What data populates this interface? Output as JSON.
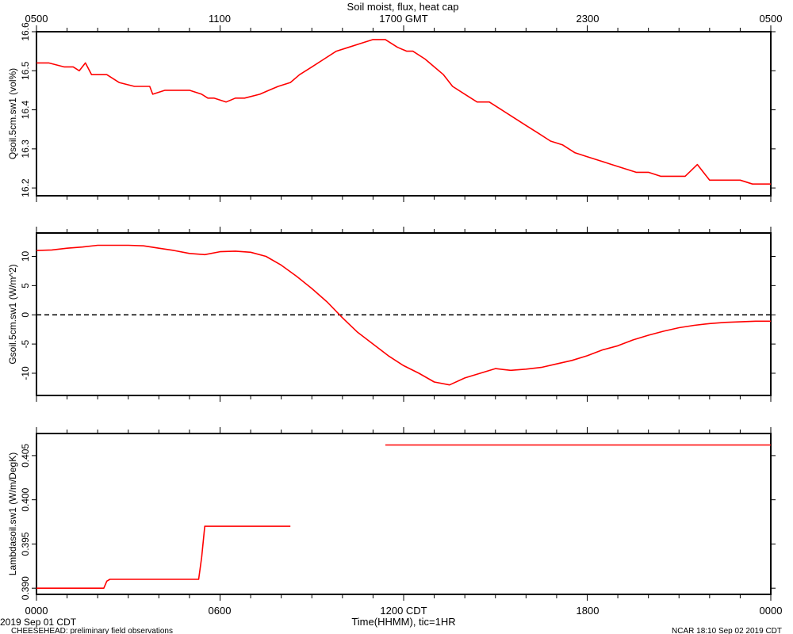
{
  "title": "Soil moist, flux, heat cap",
  "top_axis_ticks": [
    "0500",
    "1100",
    "1700 GMT",
    "2300",
    "0500"
  ],
  "bottom_axis_ticks": [
    "0000",
    "0600",
    "1200 CDT",
    "1800",
    "0000"
  ],
  "xlabel": "Time(HHMM), tic=1HR",
  "footer": {
    "date_left": "2019 Sep 01 CDT",
    "source_left": "CHEESEHEAD: preliminary field observations",
    "right": "NCAR 18:10 Sep 02 2019 CDT"
  },
  "colors": {
    "series": "#ff0000",
    "axes": "#000000",
    "zero_line": "#000000"
  },
  "chart_data": [
    {
      "type": "line",
      "ylabel": "Qsoil.5cm.sw1 (vol%)",
      "xlim": [
        0,
        24
      ],
      "ylim": [
        16.18,
        16.6
      ],
      "yticks": [
        16.2,
        16.3,
        16.4,
        16.5,
        16.6
      ],
      "ytick_labels": [
        "16.2",
        "16.3",
        "16.4",
        "16.5",
        "16.6"
      ],
      "series": [
        {
          "x": [
            0,
            0.4,
            0.9,
            1.2,
            1.4,
            1.6,
            1.8,
            2.3,
            2.7,
            3.2,
            3.7,
            3.8,
            4.2,
            4.6,
            5.0,
            5.4,
            5.6,
            5.8,
            6.2,
            6.5,
            6.8,
            7.3,
            7.6,
            7.9,
            8.3,
            8.6,
            9.0,
            9.4,
            9.8,
            10.2,
            10.6,
            11.0,
            11.4,
            11.8,
            12.1,
            12.3,
            12.7,
            13.0,
            13.3,
            13.6,
            14.0,
            14.4,
            14.8,
            15.2,
            15.6,
            16.0,
            16.4,
            16.8,
            17.2,
            17.6,
            18.0,
            18.4,
            18.8,
            19.2,
            19.6,
            20.0,
            20.4,
            20.8,
            21.2,
            21.6,
            22.0,
            22.3,
            22.6,
            23.0,
            23.4,
            23.7,
            24.0
          ],
          "y": [
            16.52,
            16.52,
            16.51,
            16.51,
            16.5,
            16.52,
            16.49,
            16.49,
            16.47,
            16.46,
            16.46,
            16.44,
            16.45,
            16.45,
            16.45,
            16.44,
            16.43,
            16.43,
            16.42,
            16.43,
            16.43,
            16.44,
            16.45,
            16.46,
            16.47,
            16.49,
            16.51,
            16.53,
            16.55,
            16.56,
            16.57,
            16.58,
            16.58,
            16.56,
            16.55,
            16.55,
            16.53,
            16.51,
            16.49,
            16.46,
            16.44,
            16.42,
            16.42,
            16.4,
            16.38,
            16.36,
            16.34,
            16.32,
            16.31,
            16.29,
            16.28,
            16.27,
            16.26,
            16.25,
            16.24,
            16.24,
            16.23,
            16.23,
            16.23,
            16.26,
            16.22,
            16.22,
            16.22,
            16.22,
            16.21,
            16.21,
            16.21
          ]
        }
      ]
    },
    {
      "type": "line",
      "ylabel": "Gsoil.5cm.sw1 (W/m^2)",
      "xlim": [
        0,
        24
      ],
      "ylim": [
        -13.8,
        14
      ],
      "yticks": [
        -10,
        -5,
        0,
        5,
        10
      ],
      "ytick_labels": [
        "-10",
        "-5",
        "0",
        "5",
        "10"
      ],
      "zero_line": true,
      "series": [
        {
          "x": [
            0,
            0.5,
            1.0,
            1.5,
            2.0,
            2.5,
            3.0,
            3.5,
            4.0,
            4.5,
            5.0,
            5.5,
            6.0,
            6.5,
            7.0,
            7.5,
            8.0,
            8.5,
            9.0,
            9.5,
            10.0,
            10.5,
            11.0,
            11.5,
            12.0,
            12.5,
            13.0,
            13.5,
            14.0,
            14.5,
            15.0,
            15.5,
            16.0,
            16.5,
            17.0,
            17.5,
            18.0,
            18.5,
            19.0,
            19.5,
            20.0,
            20.5,
            21.0,
            21.5,
            22.0,
            22.5,
            23.0,
            23.5,
            24.0
          ],
          "y": [
            11.0,
            11.1,
            11.4,
            11.6,
            11.9,
            11.9,
            11.9,
            11.8,
            11.4,
            11.0,
            10.5,
            10.3,
            10.8,
            10.9,
            10.7,
            10.0,
            8.5,
            6.6,
            4.5,
            2.2,
            -0.5,
            -3.0,
            -5.0,
            -7.0,
            -8.7,
            -10.0,
            -11.5,
            -12.0,
            -10.8,
            -10.0,
            -9.2,
            -9.5,
            -9.3,
            -9.0,
            -8.4,
            -7.8,
            -7.0,
            -6.0,
            -5.3,
            -4.3,
            -3.5,
            -2.8,
            -2.2,
            -1.8,
            -1.5,
            -1.3,
            -1.2,
            -1.1,
            -1.1
          ]
        }
      ]
    },
    {
      "type": "line",
      "ylabel": "Lambdasoil.sw1 (W/m/DegK)",
      "xlim": [
        0,
        24
      ],
      "ylim": [
        0.3893,
        0.4075
      ],
      "yticks": [
        0.39,
        0.395,
        0.4,
        0.405
      ],
      "ytick_labels": [
        "0.390",
        "0.395",
        "0.400",
        "0.405"
      ],
      "series": [
        {
          "x": [
            0,
            2.2,
            2.3,
            2.4,
            5.3,
            5.4,
            5.5,
            8.3
          ],
          "y": [
            0.39,
            0.39,
            0.3908,
            0.391,
            0.391,
            0.3935,
            0.397,
            0.397
          ]
        },
        {
          "x": [
            11.4,
            24.0
          ],
          "y": [
            0.4062,
            0.4062
          ]
        }
      ]
    }
  ]
}
